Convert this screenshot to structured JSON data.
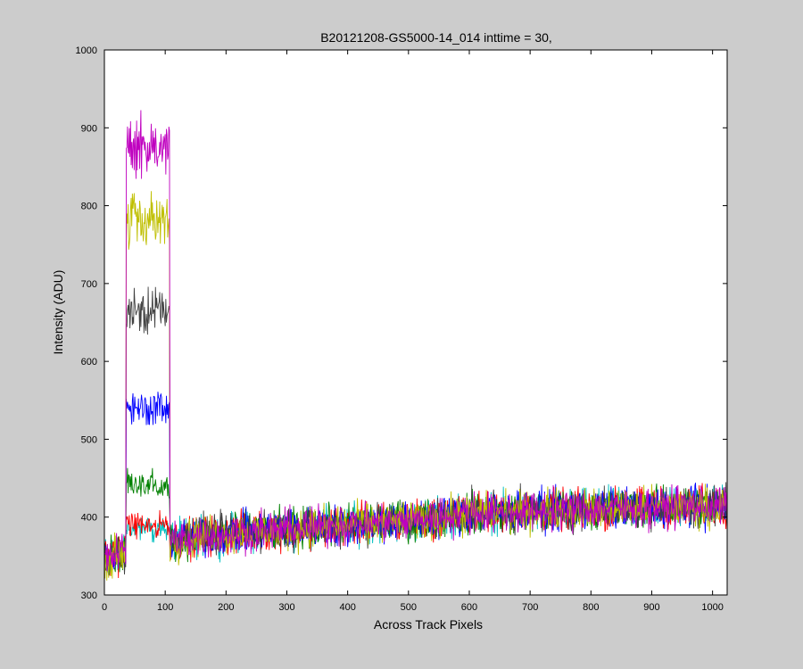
{
  "chart_data": {
    "type": "line",
    "title": "B20121208-GS5000-14_014 inttime = 30,",
    "xlabel": "Across Track Pixels",
    "ylabel": "Intensity (ADU)",
    "xlim": [
      0,
      1024
    ],
    "ylim": [
      300,
      1000
    ],
    "xticks": [
      0,
      100,
      200,
      300,
      400,
      500,
      600,
      700,
      800,
      900,
      1000
    ],
    "yticks": [
      300,
      400,
      500,
      600,
      700,
      800,
      900,
      1000
    ],
    "grid": false,
    "legend": "none",
    "x": {
      "start": 1,
      "end": 1024,
      "step": 1
    },
    "series": [
      {
        "color": "#00bfbf",
        "peak_start": 36,
        "peak_end": 107,
        "peak_level": 385,
        "baseline": [
          [
            1,
            350
          ],
          [
            40,
            360
          ],
          [
            150,
            375
          ],
          [
            300,
            385
          ],
          [
            500,
            395
          ],
          [
            600,
            405
          ],
          [
            800,
            410
          ],
          [
            1024,
            415
          ]
        ],
        "noise": 18
      },
      {
        "color": "#ff0000",
        "peak_start": 36,
        "peak_end": 107,
        "peak_level": 390,
        "baseline": [
          [
            1,
            345
          ],
          [
            40,
            360
          ],
          [
            150,
            375
          ],
          [
            300,
            385
          ],
          [
            500,
            395
          ],
          [
            600,
            405
          ],
          [
            800,
            410
          ],
          [
            1024,
            415
          ]
        ],
        "noise": 18
      },
      {
        "color": "#008000",
        "peak_start": 36,
        "peak_end": 107,
        "peak_level": 440,
        "baseline": [
          [
            1,
            345
          ],
          [
            40,
            360
          ],
          [
            150,
            375
          ],
          [
            300,
            385
          ],
          [
            500,
            395
          ],
          [
            600,
            405
          ],
          [
            800,
            410
          ],
          [
            1024,
            415
          ]
        ],
        "noise": 18
      },
      {
        "color": "#0000ff",
        "peak_start": 36,
        "peak_end": 107,
        "peak_level": 540,
        "baseline": [
          [
            1,
            345
          ],
          [
            40,
            360
          ],
          [
            150,
            375
          ],
          [
            300,
            385
          ],
          [
            500,
            395
          ],
          [
            600,
            405
          ],
          [
            800,
            410
          ],
          [
            1024,
            415
          ]
        ],
        "noise": 18
      },
      {
        "color": "#404040",
        "peak_start": 36,
        "peak_end": 107,
        "peak_level": 665,
        "baseline": [
          [
            1,
            345
          ],
          [
            40,
            360
          ],
          [
            150,
            375
          ],
          [
            300,
            385
          ],
          [
            500,
            395
          ],
          [
            600,
            405
          ],
          [
            800,
            410
          ],
          [
            1024,
            415
          ]
        ],
        "noise": 18
      },
      {
        "color": "#bfbf00",
        "peak_start": 36,
        "peak_end": 107,
        "peak_level": 780,
        "baseline": [
          [
            1,
            345
          ],
          [
            40,
            360
          ],
          [
            150,
            375
          ],
          [
            300,
            385
          ],
          [
            500,
            395
          ],
          [
            600,
            405
          ],
          [
            800,
            410
          ],
          [
            1024,
            415
          ]
        ],
        "noise": 18
      },
      {
        "color": "#bf00bf",
        "peak_start": 36,
        "peak_end": 107,
        "peak_level": 875,
        "baseline": [
          [
            1,
            345
          ],
          [
            40,
            360
          ],
          [
            150,
            375
          ],
          [
            300,
            385
          ],
          [
            500,
            395
          ],
          [
            600,
            405
          ],
          [
            800,
            410
          ],
          [
            1024,
            415
          ]
        ],
        "noise": 18
      }
    ]
  }
}
